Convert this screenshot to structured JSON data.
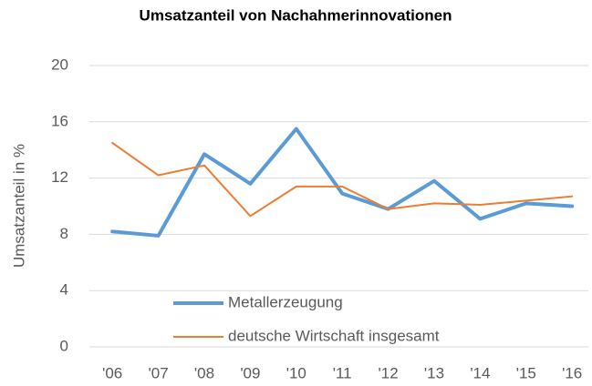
{
  "chart_data": {
    "type": "line",
    "title": "Umsatzanteil von Nachahmerinnovationen",
    "y_label": "Umsatzanteil in %",
    "categories": [
      "'06",
      "'07",
      "'08",
      "'09",
      "'10",
      "'11",
      "'12",
      "'13",
      "'14",
      "'15",
      "'16"
    ],
    "series": [
      {
        "name": "Metallerzeugung",
        "color": "#5b9bd5",
        "values": [
          8.2,
          7.9,
          13.7,
          11.6,
          15.5,
          10.9,
          9.8,
          11.8,
          9.1,
          10.2,
          10.0
        ]
      },
      {
        "name": "deutsche Wirtschaft insgesamt",
        "color": "#ed7d31",
        "values": [
          14.5,
          12.2,
          12.9,
          9.3,
          11.4,
          11.4,
          9.8,
          10.2,
          10.1,
          10.4,
          10.7
        ]
      }
    ],
    "ylim": [
      0,
      20
    ],
    "yticks": [
      0,
      4,
      8,
      12,
      16,
      20
    ],
    "grid": true,
    "legend": "lower left"
  }
}
